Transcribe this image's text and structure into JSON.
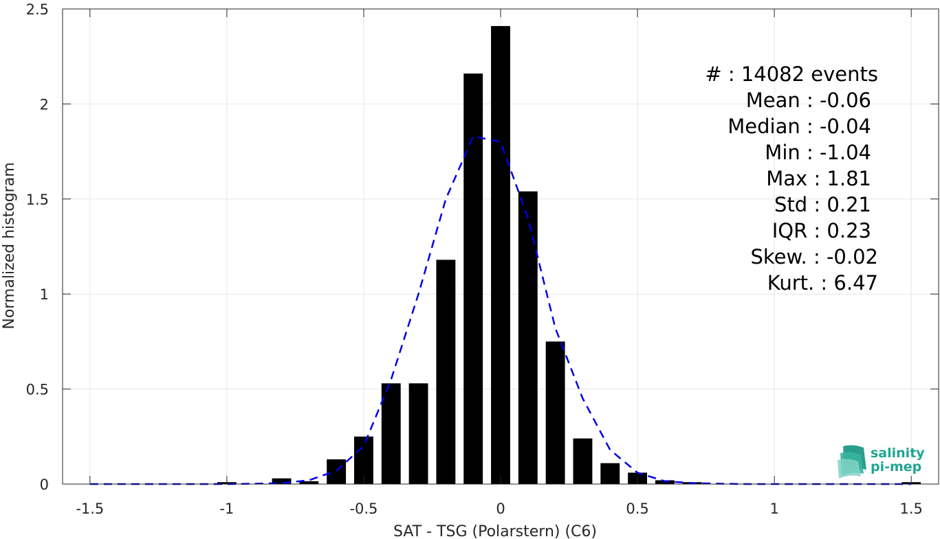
{
  "chart_data": {
    "type": "bar",
    "xlabel": "SAT - TSG (Polarstern) (C6)",
    "ylabel": "Normalized histogram",
    "xlim": [
      -1.6,
      1.6
    ],
    "ylim": [
      0,
      2.5
    ],
    "xticks": [
      -1.5,
      -1,
      -0.5,
      0,
      0.5,
      1,
      1.5
    ],
    "xtick_labels": [
      "-1.5",
      "-1",
      "-0.5",
      "0",
      "0.5",
      "1",
      "1.5"
    ],
    "yticks": [
      0,
      0.5,
      1,
      1.5,
      2,
      2.5
    ],
    "ytick_labels": [
      "0",
      "0.5",
      "1",
      "1.5",
      "2",
      "2.5"
    ],
    "grid": true,
    "bar_color": "#000000",
    "bar_width": 0.07,
    "bars": {
      "x": [
        -1.5,
        -1.4,
        -1.3,
        -1.2,
        -1.1,
        -1.0,
        -0.9,
        -0.8,
        -0.7,
        -0.6,
        -0.5,
        -0.4,
        -0.3,
        -0.2,
        -0.1,
        0.0,
        0.1,
        0.2,
        0.3,
        0.4,
        0.5,
        0.6,
        0.7,
        0.8,
        0.9,
        1.0,
        1.1,
        1.2,
        1.3,
        1.4,
        1.5
      ],
      "values": [
        0,
        0,
        0,
        0,
        0,
        0.01,
        0,
        0.03,
        0.015,
        0.13,
        0.25,
        0.53,
        0.53,
        1.18,
        2.16,
        2.41,
        1.54,
        0.75,
        0.24,
        0.11,
        0.06,
        0.02,
        0.01,
        0,
        0,
        0,
        0,
        0,
        0,
        0,
        0.01
      ]
    },
    "fit_curve": {
      "style": "dashed",
      "color": "#0000e6",
      "x": [
        -1.5,
        -1.4,
        -1.3,
        -1.2,
        -1.1,
        -1.0,
        -0.9,
        -0.8,
        -0.7,
        -0.6,
        -0.5,
        -0.4,
        -0.3,
        -0.2,
        -0.1,
        0.0,
        0.1,
        0.2,
        0.3,
        0.4,
        0.5,
        0.6,
        0.7,
        0.8,
        0.9,
        1.0,
        1.1,
        1.2,
        1.3,
        1.4,
        1.5
      ],
      "values": [
        0,
        0,
        0,
        0,
        0,
        0,
        0.002,
        0.005,
        0.02,
        0.07,
        0.2,
        0.55,
        1.0,
        1.5,
        1.83,
        1.8,
        1.4,
        0.82,
        0.45,
        0.18,
        0.06,
        0.015,
        0.005,
        0.002,
        0,
        0,
        0,
        0,
        0,
        0,
        0
      ]
    }
  },
  "stats": [
    "#  : 14082 events",
    "Mean : -0.06",
    "Median : -0.04",
    "Min : -1.04",
    "Max : 1.81",
    "Std : 0.21",
    "IQR : 0.23",
    "Skew. : -0.02",
    "Kurt. : 6.47"
  ],
  "logo": {
    "line1": "salinity",
    "line2": "pi-mep",
    "color": "#1ea591"
  }
}
